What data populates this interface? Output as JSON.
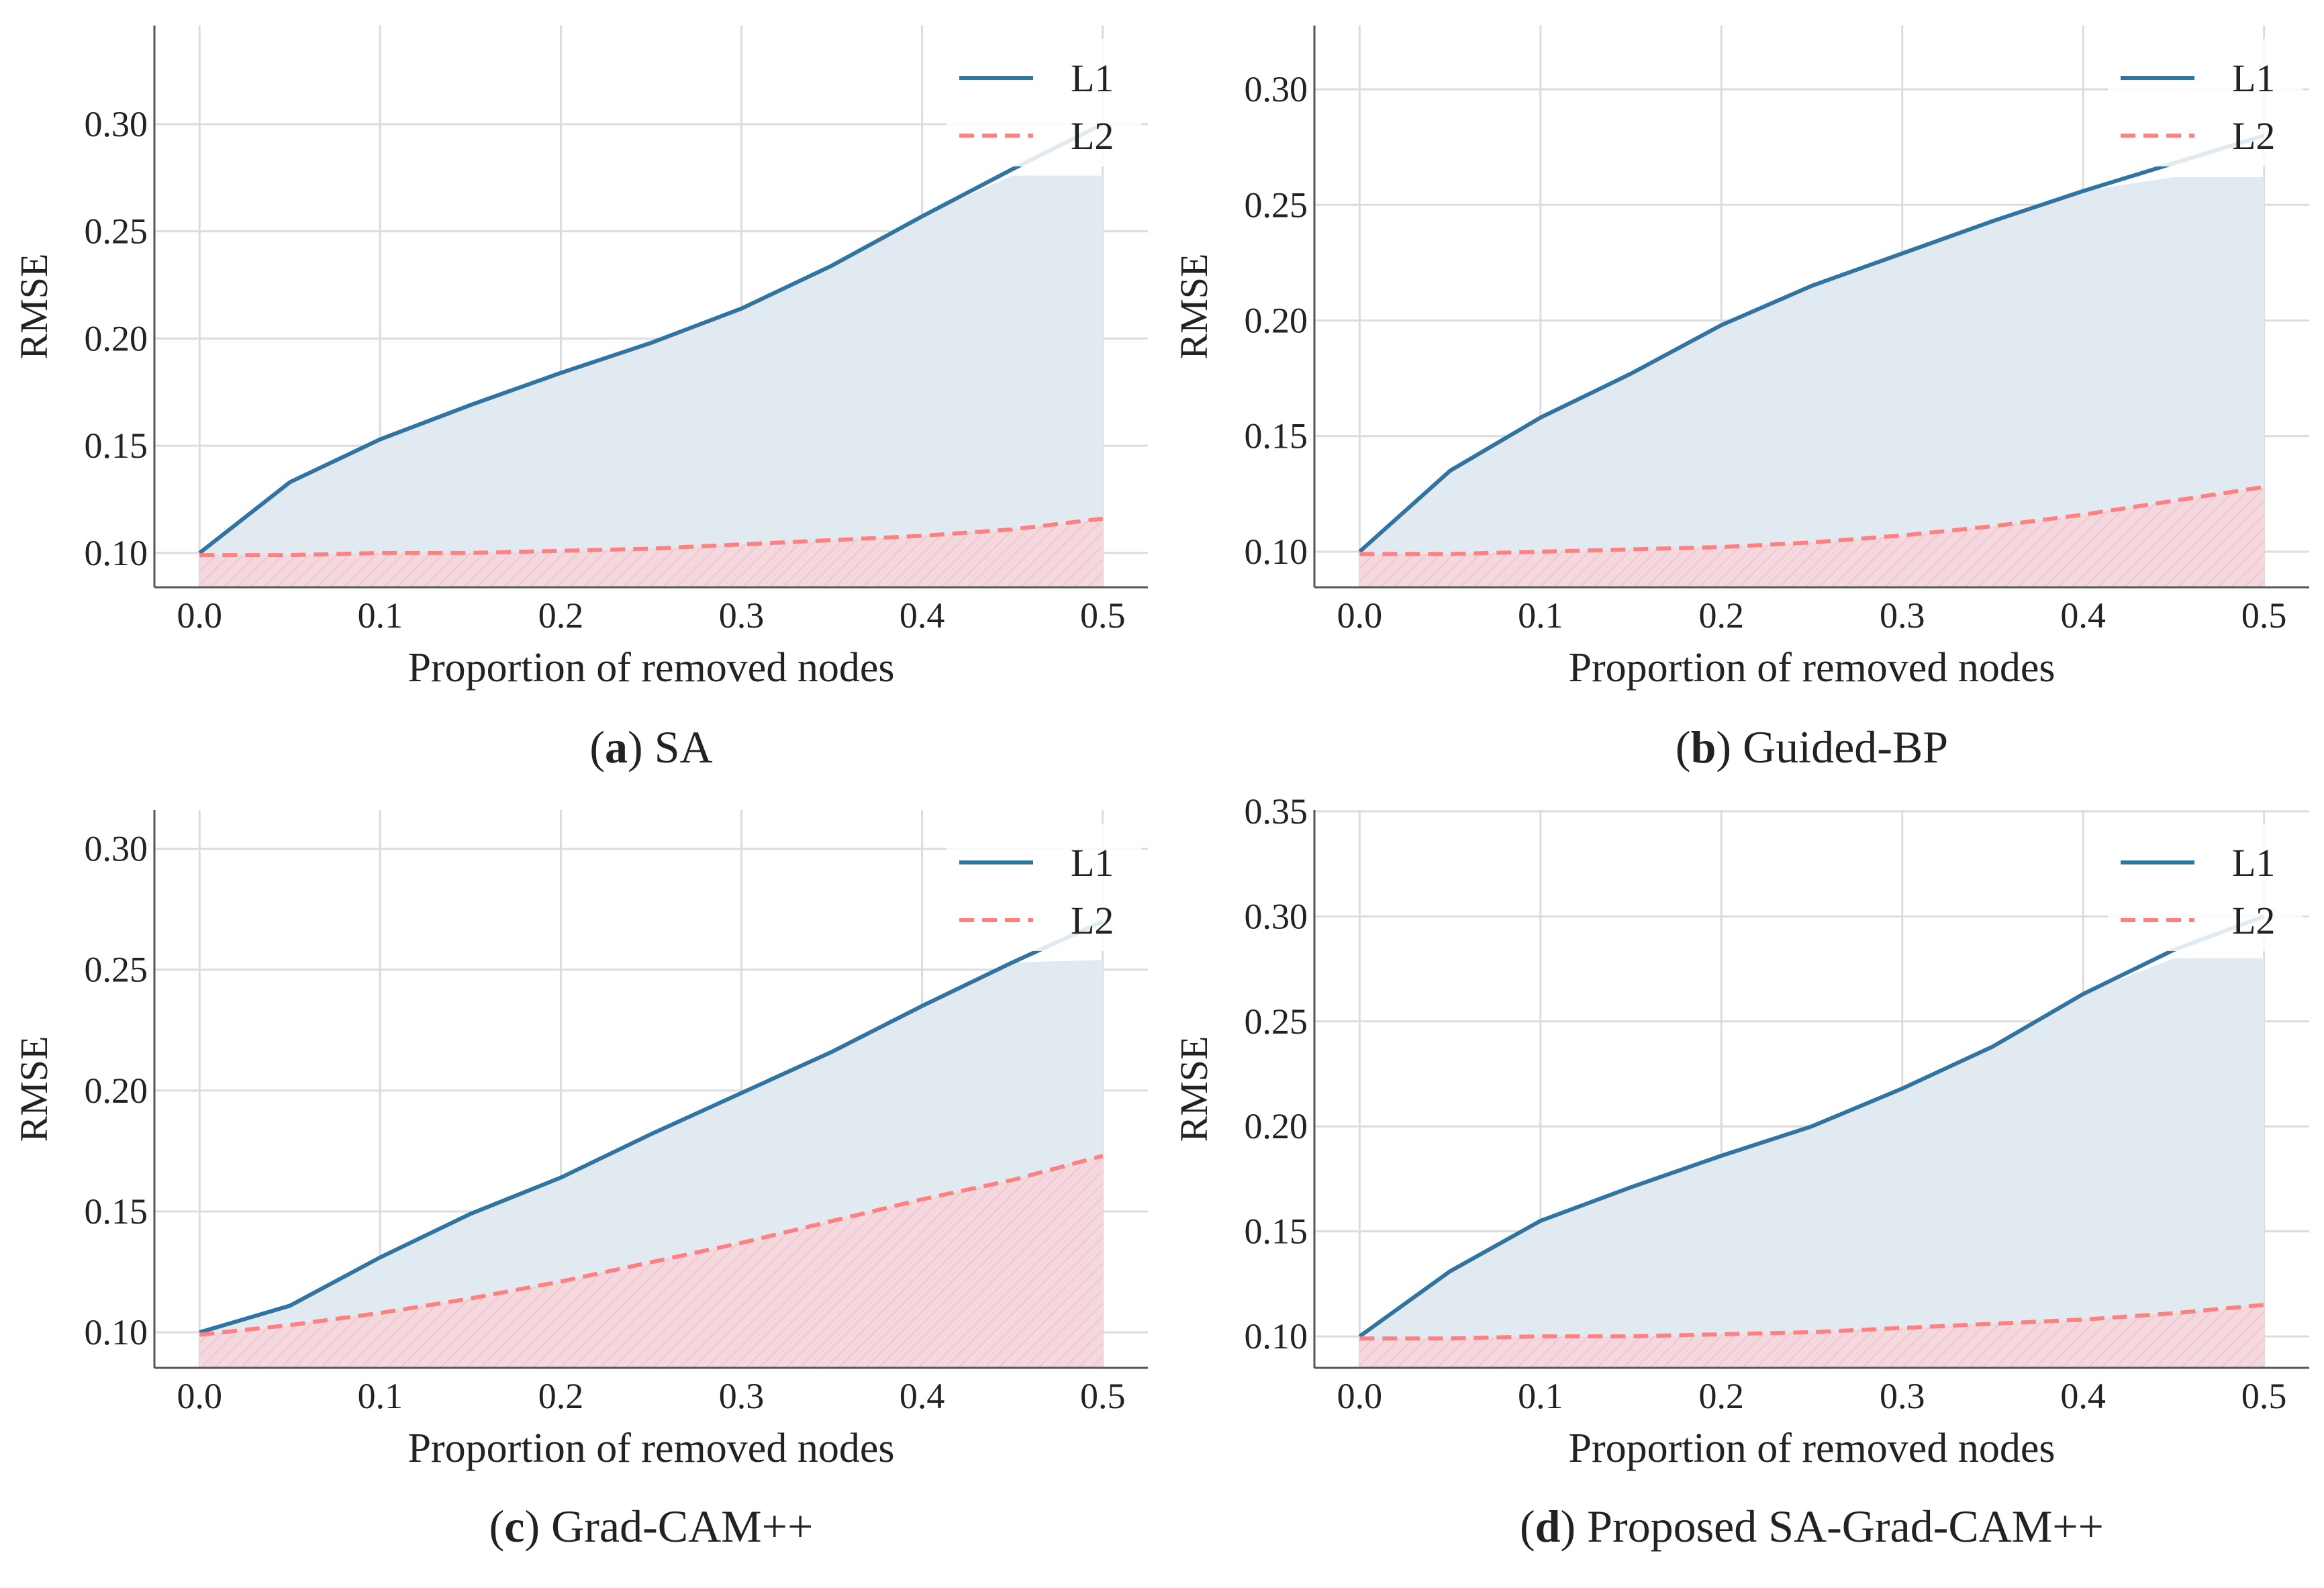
{
  "colors": {
    "L1": "#3274a1",
    "L2": "#ff8080",
    "L1_fill": "#e1e9f1",
    "L2_fill": "#f4d8de",
    "grid": "#dcdcdc",
    "axis": "#555555"
  },
  "chart_data": [
    {
      "type": "line",
      "panel_letter": "a",
      "caption": "SA",
      "xlabel": "Proportion of removed nodes",
      "ylabel": "RMSE",
      "xlim": [
        -0.025,
        0.525
      ],
      "ylim": [
        0.084,
        0.346
      ],
      "xticks": [
        "0.0",
        "0.1",
        "0.2",
        "0.3",
        "0.4",
        "0.5"
      ],
      "yticks": [
        "0.10",
        "0.15",
        "0.20",
        "0.25",
        "0.30"
      ],
      "grid": true,
      "legend": "top-right",
      "fill_top": 0.276,
      "x": [
        0,
        0.05,
        0.1,
        0.15,
        0.2,
        0.25,
        0.3,
        0.35,
        0.4,
        0.45,
        0.5
      ],
      "series": [
        {
          "name": "L1",
          "values": [
            0.1,
            0.133,
            0.153,
            0.169,
            0.184,
            0.198,
            0.214,
            0.234,
            0.257,
            0.279,
            0.3
          ]
        },
        {
          "name": "L2",
          "values": [
            0.099,
            0.099,
            0.1,
            0.1,
            0.101,
            0.102,
            0.104,
            0.106,
            0.108,
            0.111,
            0.116
          ]
        }
      ]
    },
    {
      "type": "line",
      "panel_letter": "b",
      "caption": "Guided-BP",
      "xlabel": "Proportion of removed nodes",
      "ylabel": "RMSE",
      "xlim": [
        -0.025,
        0.525
      ],
      "ylim": [
        0.0846,
        0.3276
      ],
      "xticks": [
        "0.0",
        "0.1",
        "0.2",
        "0.3",
        "0.4",
        "0.5"
      ],
      "yticks": [
        "0.10",
        "0.15",
        "0.20",
        "0.25",
        "0.30"
      ],
      "grid": true,
      "legend": "top-right",
      "fill_top": 0.262,
      "x": [
        0,
        0.05,
        0.1,
        0.15,
        0.2,
        0.25,
        0.3,
        0.35,
        0.4,
        0.45,
        0.5
      ],
      "series": [
        {
          "name": "L1",
          "values": [
            0.1,
            0.135,
            0.158,
            0.177,
            0.198,
            0.215,
            0.229,
            0.243,
            0.256,
            0.268,
            0.28
          ]
        },
        {
          "name": "L2",
          "values": [
            0.099,
            0.099,
            0.1,
            0.101,
            0.102,
            0.104,
            0.107,
            0.111,
            0.116,
            0.122,
            0.128
          ]
        }
      ]
    },
    {
      "type": "line",
      "panel_letter": "c",
      "caption": "Grad-CAM++",
      "xlabel": "Proportion of removed nodes",
      "ylabel": "RMSE",
      "xlim": [
        -0.025,
        0.525
      ],
      "ylim": [
        0.0853,
        0.316
      ],
      "xticks": [
        "0.0",
        "0.1",
        "0.2",
        "0.3",
        "0.4",
        "0.5"
      ],
      "yticks": [
        "0.10",
        "0.15",
        "0.20",
        "0.25",
        "0.30"
      ],
      "grid": true,
      "legend": "top-right",
      "fill_top": 0.254,
      "x": [
        0,
        0.05,
        0.1,
        0.15,
        0.2,
        0.25,
        0.3,
        0.35,
        0.4,
        0.45,
        0.5
      ],
      "series": [
        {
          "name": "L1",
          "values": [
            0.1,
            0.111,
            0.131,
            0.149,
            0.164,
            0.182,
            0.199,
            0.216,
            0.235,
            0.253,
            0.27
          ]
        },
        {
          "name": "L2",
          "values": [
            0.099,
            0.103,
            0.108,
            0.114,
            0.121,
            0.129,
            0.137,
            0.146,
            0.155,
            0.163,
            0.173
          ]
        }
      ]
    },
    {
      "type": "line",
      "panel_letter": "d",
      "caption": "Proposed SA-Grad-CAM++",
      "xlabel": "Proportion of removed nodes",
      "ylabel": "RMSE",
      "xlim": [
        -0.025,
        0.525
      ],
      "ylim": [
        0.085,
        0.3506
      ],
      "xticks": [
        "0.0",
        "0.1",
        "0.2",
        "0.3",
        "0.4",
        "0.5"
      ],
      "yticks": [
        "0.10",
        "0.15",
        "0.20",
        "0.25",
        "0.30",
        "0.35"
      ],
      "grid": true,
      "legend": "top-right",
      "fill_top": 0.28,
      "x": [
        0,
        0.05,
        0.1,
        0.15,
        0.2,
        0.25,
        0.3,
        0.35,
        0.4,
        0.45,
        0.5
      ],
      "series": [
        {
          "name": "L1",
          "values": [
            0.1,
            0.131,
            0.155,
            0.171,
            0.186,
            0.2,
            0.218,
            0.238,
            0.263,
            0.284,
            0.3
          ]
        },
        {
          "name": "L2",
          "values": [
            0.099,
            0.099,
            0.1,
            0.1,
            0.101,
            0.102,
            0.104,
            0.106,
            0.108,
            0.111,
            0.115
          ]
        }
      ]
    }
  ]
}
